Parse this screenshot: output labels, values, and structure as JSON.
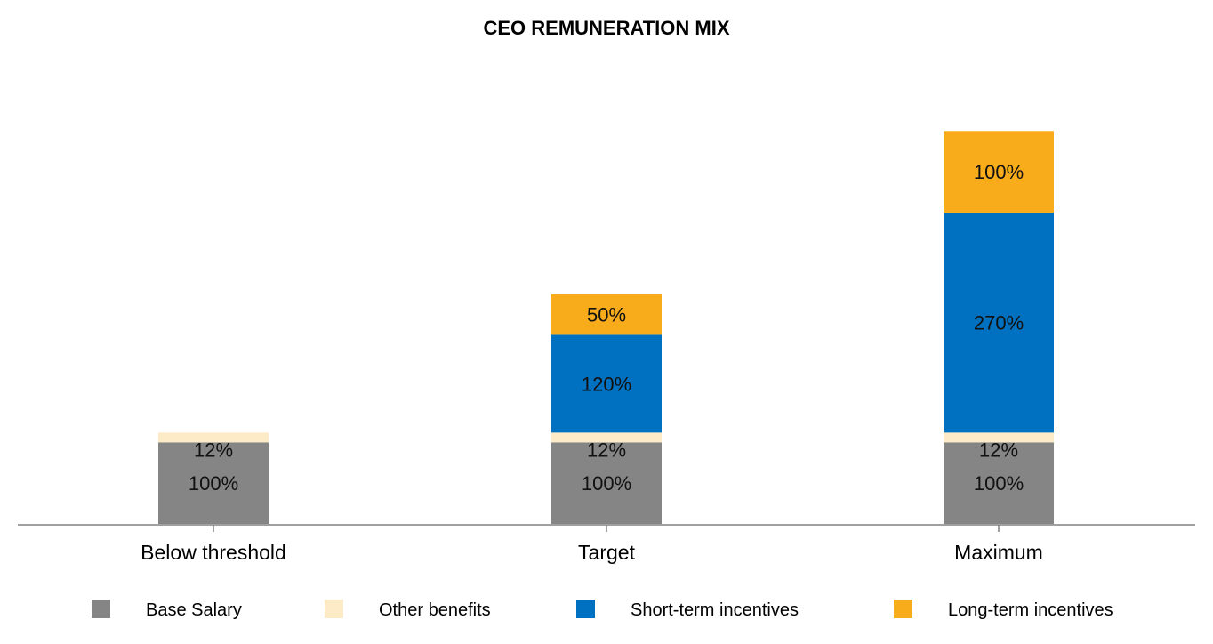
{
  "chart_data": {
    "type": "bar",
    "stacked": true,
    "title": "CEO REMUNERATION MIX",
    "xlabel": "",
    "ylabel": "",
    "categories": [
      "Below threshold",
      "Target",
      "Maximum"
    ],
    "series": [
      {
        "name": "Base Salary",
        "color": "#858585",
        "values": [
          100,
          100,
          100
        ],
        "labels": [
          "100%",
          "100%",
          "100%"
        ]
      },
      {
        "name": "Other benefits",
        "color": "#fdebc8",
        "values": [
          12,
          12,
          12
        ],
        "labels": [
          "12%",
          "12%",
          "12%"
        ]
      },
      {
        "name": "Short-term incentives",
        "color": "#0070c0",
        "values": [
          0,
          120,
          270
        ],
        "labels": [
          "",
          "120%",
          "270%"
        ]
      },
      {
        "name": "Long-term incentives",
        "color": "#f9ac1b",
        "values": [
          0,
          50,
          100
        ],
        "labels": [
          "",
          "50%",
          "100%"
        ]
      }
    ],
    "ylim": [
      0,
      550
    ],
    "grid": false,
    "legend_position": "bottom"
  }
}
